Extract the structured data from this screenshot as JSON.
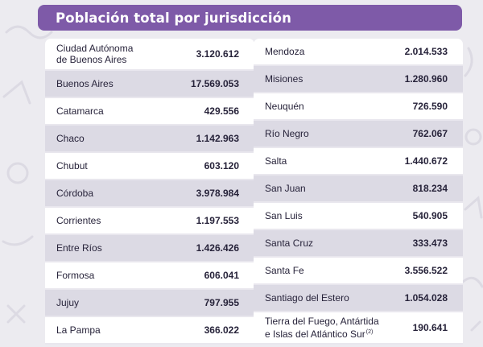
{
  "title": "Población total por jurisdicción",
  "colors": {
    "header": "#7e5aa8",
    "row_alt": "#dcdae4",
    "background": "#ecebf0",
    "text": "#27233a"
  },
  "left_column": [
    {
      "name": "Ciudad Autónoma\nde Buenos Aires",
      "value": "3.120.612"
    },
    {
      "name": "Buenos Aires",
      "value": "17.569.053"
    },
    {
      "name": "Catamarca",
      "value": "429.556"
    },
    {
      "name": "Chaco",
      "value": "1.142.963"
    },
    {
      "name": "Chubut",
      "value": "603.120"
    },
    {
      "name": "Córdoba",
      "value": "3.978.984"
    },
    {
      "name": "Corrientes",
      "value": "1.197.553"
    },
    {
      "name": "Entre Ríos",
      "value": "1.426.426"
    },
    {
      "name": "Formosa",
      "value": "606.041"
    },
    {
      "name": "Jujuy",
      "value": "797.955"
    },
    {
      "name": "La Pampa",
      "value": "366.022"
    }
  ],
  "right_column": [
    {
      "name": "Mendoza",
      "value": "2.014.533"
    },
    {
      "name": "Misiones",
      "value": "1.280.960"
    },
    {
      "name": "Neuquén",
      "value": "726.590"
    },
    {
      "name": "Río Negro",
      "value": "762.067"
    },
    {
      "name": "Salta",
      "value": "1.440.672"
    },
    {
      "name": "San Juan",
      "value": "818.234"
    },
    {
      "name": "San Luis",
      "value": "540.905"
    },
    {
      "name": "Santa Cruz",
      "value": "333.473"
    },
    {
      "name": "Santa Fe",
      "value": "3.556.522"
    },
    {
      "name": "Santiago del Estero",
      "value": "1.054.028"
    },
    {
      "name": "Tierra del Fuego, Antártida\ne Islas del Atlántico Sur",
      "value": "190.641",
      "note": "(2)"
    }
  ]
}
